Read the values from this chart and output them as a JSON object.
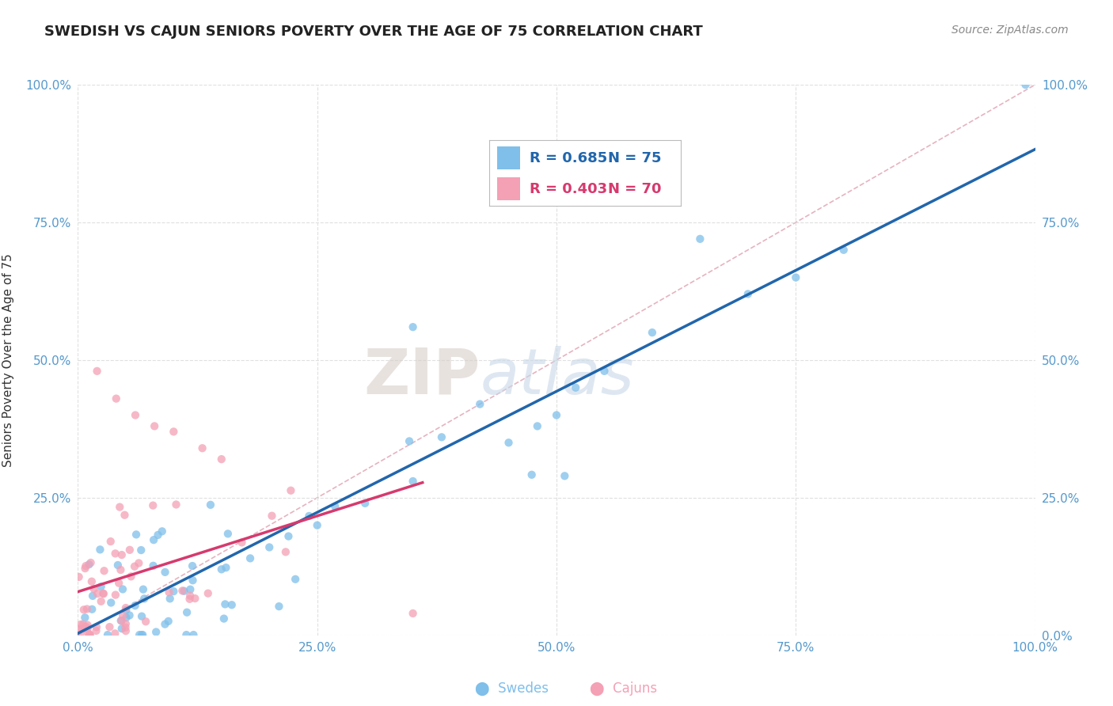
{
  "title": "SWEDISH VS CAJUN SENIORS POVERTY OVER THE AGE OF 75 CORRELATION CHART",
  "source": "Source: ZipAtlas.com",
  "ylabel": "Seniors Poverty Over the Age of 75",
  "swedes_color": "#7fbfea",
  "cajuns_color": "#f4a0b5",
  "swedes_line_color": "#2166ac",
  "cajuns_line_color": "#d63a6e",
  "ref_line_color": "#e0a0b0",
  "R_swedes": 0.685,
  "N_swedes": 75,
  "R_cajuns": 0.403,
  "N_cajuns": 70,
  "watermark_zip": "ZIP",
  "watermark_atlas": "atlas",
  "background_color": "#ffffff",
  "grid_color": "#e0e0e0",
  "xlim": [
    0,
    1
  ],
  "ylim": [
    0,
    1
  ],
  "xticks": [
    0.0,
    0.25,
    0.5,
    0.75,
    1.0
  ],
  "yticks": [
    0.0,
    0.25,
    0.5,
    0.75,
    1.0
  ],
  "xticklabels": [
    "0.0%",
    "25.0%",
    "50.0%",
    "75.0%",
    "100.0%"
  ],
  "left_yticklabels": [
    "",
    "25.0%",
    "50.0%",
    "75.0%",
    "100.0%"
  ],
  "right_yticklabels": [
    "0.0%",
    "25.0%",
    "50.0%",
    "75.0%",
    "100.0%"
  ],
  "tick_color": "#5599cc"
}
